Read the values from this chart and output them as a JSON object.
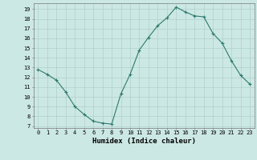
{
  "x": [
    0,
    1,
    2,
    3,
    4,
    5,
    6,
    7,
    8,
    9,
    10,
    11,
    12,
    13,
    14,
    15,
    16,
    17,
    18,
    19,
    20,
    21,
    22,
    23
  ],
  "y": [
    12.8,
    12.3,
    11.7,
    10.5,
    9.0,
    8.2,
    7.5,
    7.3,
    7.2,
    10.3,
    12.3,
    14.8,
    16.1,
    17.3,
    18.1,
    19.2,
    18.7,
    18.3,
    18.2,
    16.5,
    15.5,
    13.7,
    12.2,
    11.3
  ],
  "line_color": "#2d7a6e",
  "marker": "+",
  "bg_color": "#cce8e4",
  "grid_color": "#aed0cb",
  "xlabel": "Humidex (Indice chaleur)",
  "xlim": [
    -0.5,
    23.5
  ],
  "ylim": [
    6.8,
    19.6
  ],
  "yticks": [
    7,
    8,
    9,
    10,
    11,
    12,
    13,
    14,
    15,
    16,
    17,
    18,
    19
  ],
  "xticks": [
    0,
    1,
    2,
    3,
    4,
    5,
    6,
    7,
    8,
    9,
    10,
    11,
    12,
    13,
    14,
    15,
    16,
    17,
    18,
    19,
    20,
    21,
    22,
    23
  ],
  "xtick_labels": [
    "0",
    "1",
    "2",
    "3",
    "4",
    "5",
    "6",
    "7",
    "8",
    "9",
    "10",
    "11",
    "12",
    "13",
    "14",
    "15",
    "16",
    "17",
    "18",
    "19",
    "20",
    "21",
    "22",
    "23"
  ]
}
